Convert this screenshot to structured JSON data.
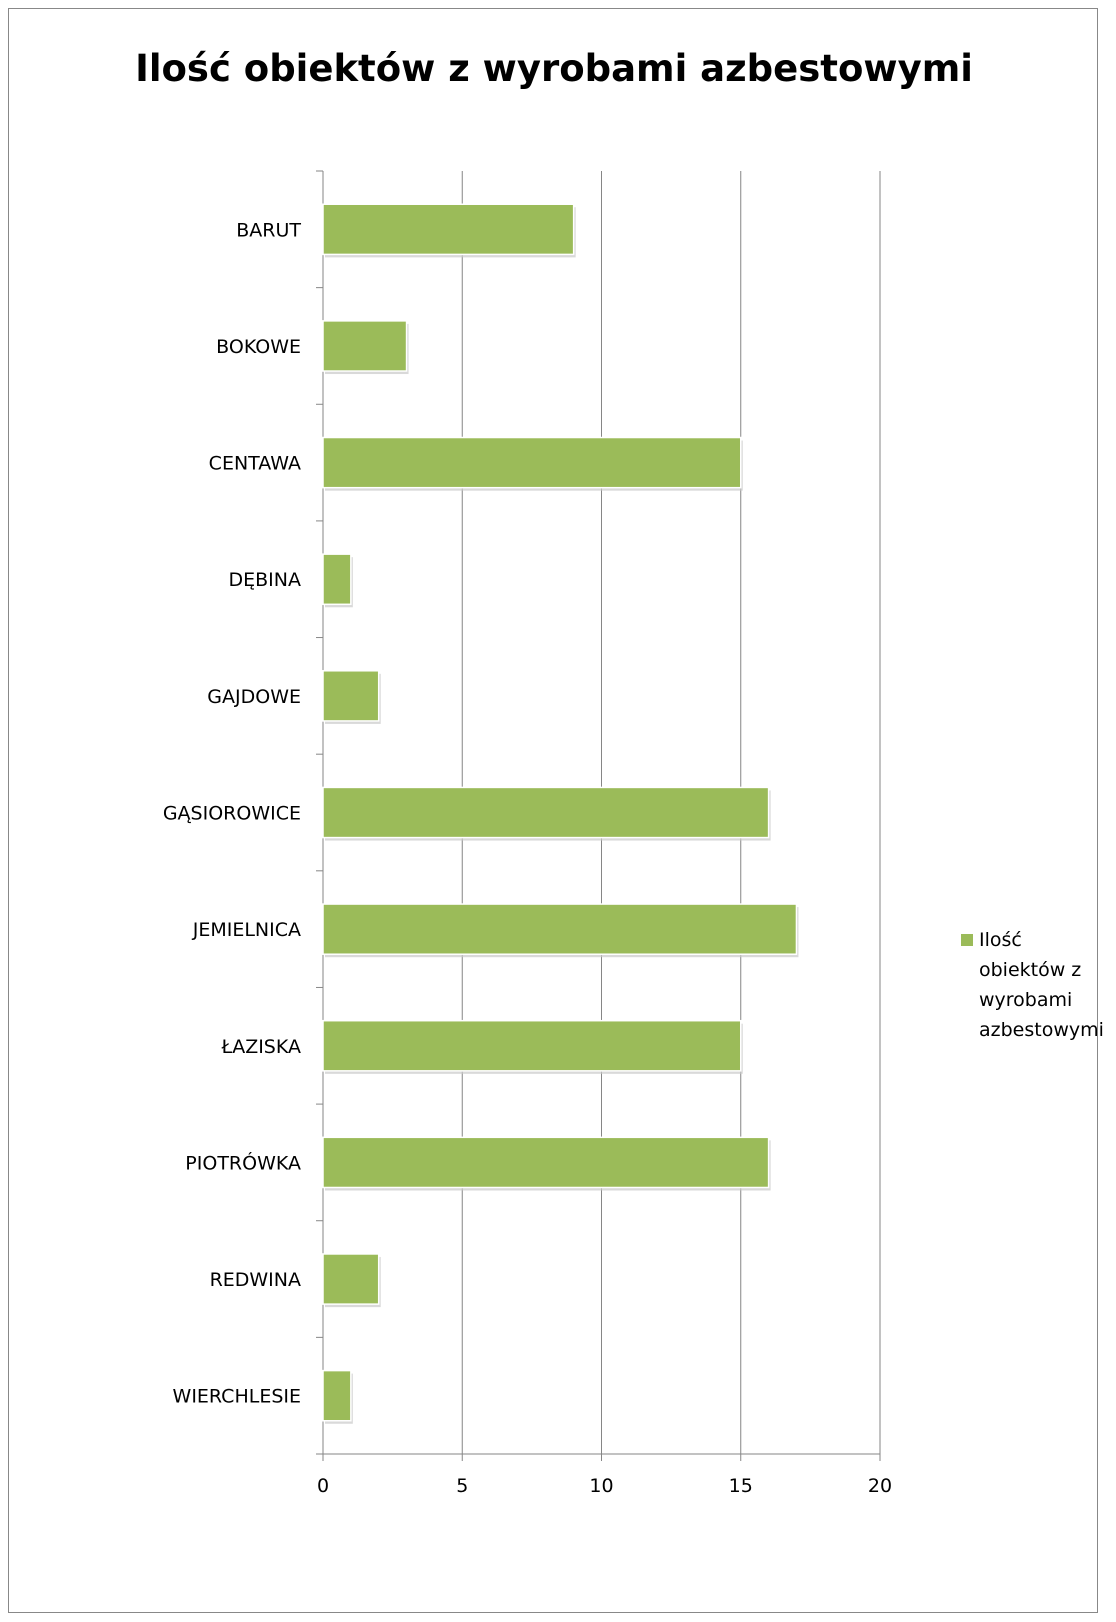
{
  "chart_data": {
    "type": "bar",
    "orientation": "horizontal",
    "title": "Ilość obiektów z wyrobami azbestowymi",
    "categories": [
      "BARUT",
      "BOKOWE",
      "CENTAWA",
      "DĘBINA",
      "GAJDOWE",
      "GĄSIOROWICE",
      "JEMIELNICA",
      "ŁAZISKA",
      "PIOTRÓWKA",
      "REDWINA",
      "WIERCHLESIE"
    ],
    "series": [
      {
        "name": "Ilość obiektów z wyrobami azbestowymi",
        "values": [
          9,
          3,
          15,
          1,
          2,
          16,
          17,
          15,
          16,
          2,
          1
        ]
      }
    ],
    "xticks": [
      "0",
      "5",
      "10",
      "15",
      "20"
    ],
    "xlim": [
      0,
      20
    ],
    "grid": "vertical",
    "legend": "right",
    "colors": {
      "bar": "#9bbb59",
      "grid": "#868686",
      "axis": "#868686"
    }
  }
}
